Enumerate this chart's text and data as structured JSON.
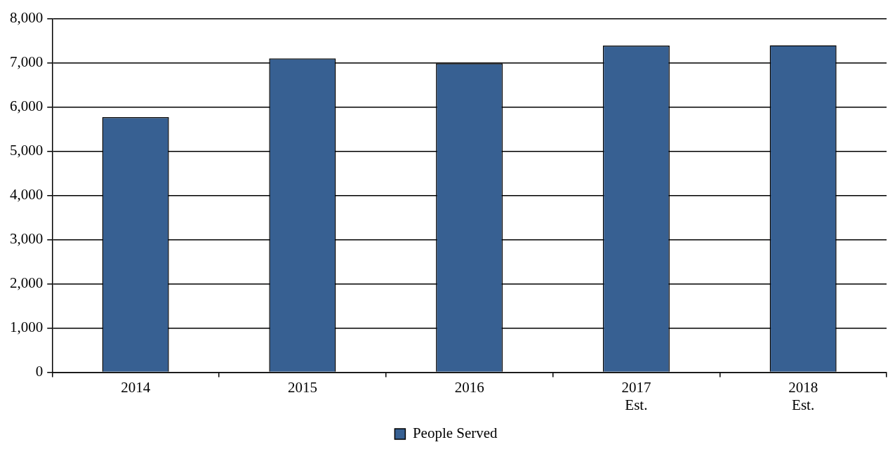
{
  "chart_data": {
    "type": "bar",
    "categories": [
      "2014",
      "2015",
      "2016",
      "2017\nEst.",
      "2018\nEst."
    ],
    "series": [
      {
        "name": "People Served",
        "color": "#376092",
        "values": [
          5770,
          7100,
          6990,
          7390,
          7400
        ]
      }
    ],
    "ylim": [
      0,
      8000
    ],
    "yticks": [
      {
        "value": 0,
        "label": "0"
      },
      {
        "value": 1000,
        "label": "1,000"
      },
      {
        "value": 2000,
        "label": "2,000"
      },
      {
        "value": 3000,
        "label": "3,000"
      },
      {
        "value": 4000,
        "label": "4,000"
      },
      {
        "value": 5000,
        "label": "5,000"
      },
      {
        "value": 6000,
        "label": "6,000"
      },
      {
        "value": 7000,
        "label": "7,000"
      },
      {
        "value": 8000,
        "label": "8,000"
      }
    ],
    "grid": "y",
    "legend": "bottom"
  }
}
